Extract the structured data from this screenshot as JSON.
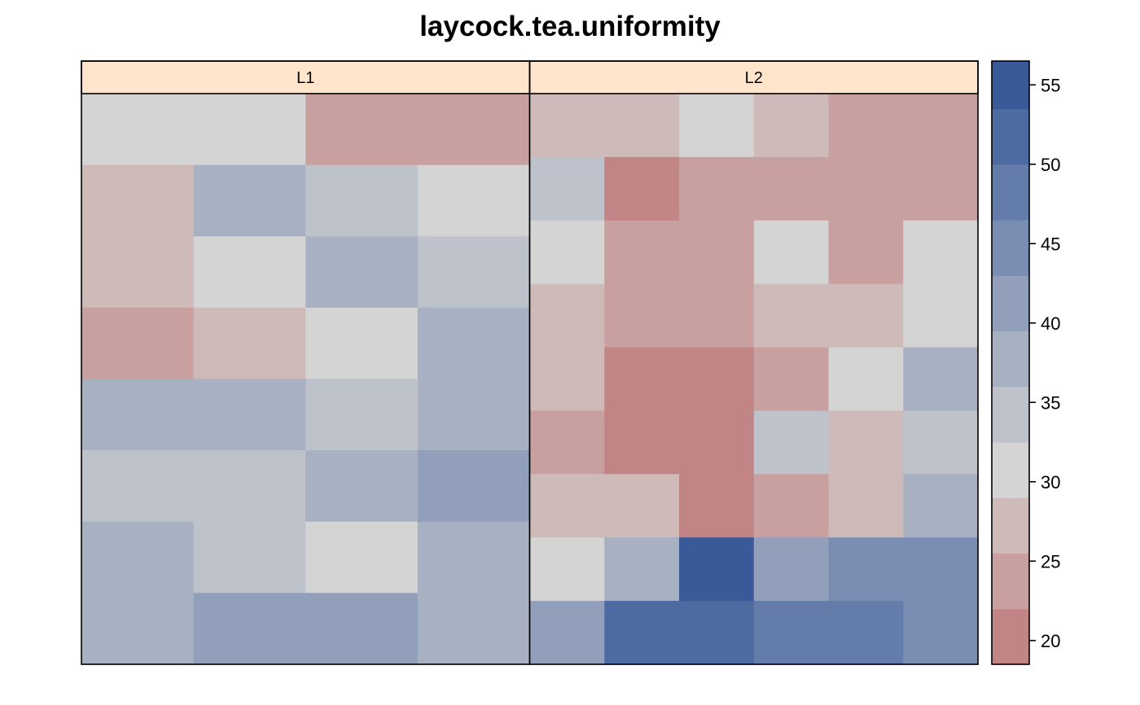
{
  "chart_data": {
    "type": "heatmap",
    "title": "laycock.tea.uniformity",
    "panels": [
      {
        "name": "L1",
        "columns": 4,
        "rows": [
          [
            30,
            30,
            23,
            23
          ],
          [
            27,
            38,
            34,
            30
          ],
          [
            27,
            30,
            38,
            34
          ],
          [
            23,
            27,
            30,
            38
          ],
          [
            38,
            38,
            34,
            38
          ],
          [
            34,
            34,
            38,
            41
          ],
          [
            38,
            34,
            30,
            38
          ],
          [
            38,
            41,
            41,
            38
          ]
        ]
      },
      {
        "name": "L2",
        "columns": 6,
        "rows": [
          [
            27,
            27,
            30,
            27,
            23,
            23
          ],
          [
            34,
            21,
            23,
            23,
            23,
            23
          ],
          [
            30,
            23,
            23,
            30,
            23,
            30
          ],
          [
            27,
            23,
            23,
            27,
            27,
            30
          ],
          [
            27,
            21,
            21,
            23,
            30,
            38
          ],
          [
            23,
            21,
            21,
            34,
            27,
            34
          ],
          [
            27,
            27,
            21,
            23,
            27,
            38
          ],
          [
            30,
            38,
            55,
            41,
            46,
            46
          ],
          [
            41,
            51,
            51,
            48,
            48,
            46
          ]
        ]
      }
    ],
    "colorbar": {
      "min": 18.5,
      "max": 56.5,
      "breaks": [
        18.5,
        22,
        25.5,
        29,
        32.5,
        36,
        39.5,
        43,
        46.5,
        50,
        53.5,
        56.5
      ],
      "colors": [
        "#c28585",
        "#c9a0a0",
        "#cfbaba",
        "#d4d4d4",
        "#bec2ca",
        "#a8b1c2",
        "#929fba",
        "#7a8db2",
        "#647caa",
        "#4d6aa1",
        "#395999"
      ],
      "ticks": [
        20,
        25,
        30,
        35,
        40,
        45,
        50,
        55
      ]
    }
  }
}
